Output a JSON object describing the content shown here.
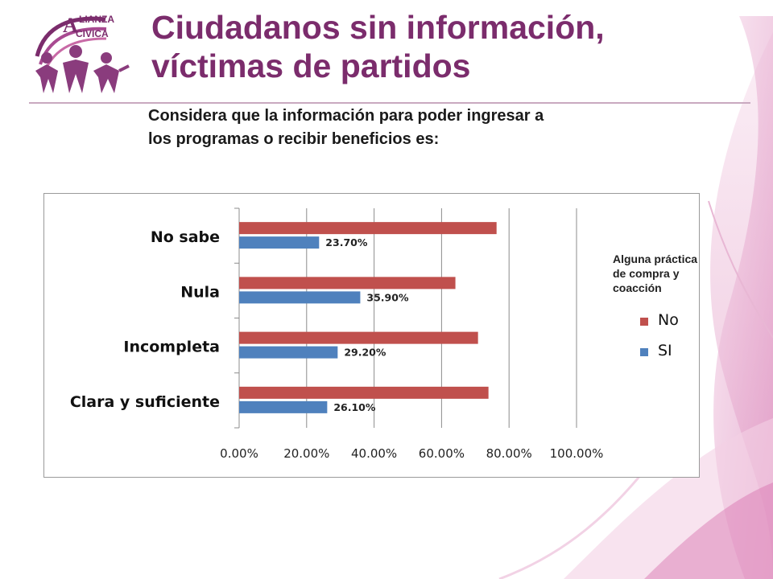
{
  "logo": {
    "text_top": "LIANZA",
    "text_bottom": "CIVICA",
    "letter": "A",
    "name": "alianza-civica-logo"
  },
  "header": {
    "title_line1": "Ciudadanos sin información,",
    "title_line2": "víctimas de partidos"
  },
  "question": {
    "line1": "Considera  que la información para poder ingresar a",
    "line2": "los programas o recibir beneficios es:"
  },
  "colors": {
    "title": "#7b2c6c",
    "no": "#c0504d",
    "si": "#4f81bd",
    "accent": "#c86aa6"
  },
  "legend": {
    "title_line1": "Alguna práctica",
    "title_line2": "de compra y",
    "title_line3": "coacción",
    "items": [
      {
        "label": "No",
        "color": "#c0504d"
      },
      {
        "label": "SI",
        "color": "#4f81bd"
      }
    ]
  },
  "chart_data": {
    "type": "bar",
    "orientation": "horizontal",
    "categories": [
      "No sabe",
      "Nula",
      "Incompleta",
      "Clara y suficiente"
    ],
    "series": [
      {
        "name": "No",
        "values": [
          76.3,
          64.1,
          70.8,
          73.9
        ],
        "color": "#c0504d"
      },
      {
        "name": "SI",
        "values": [
          23.7,
          35.9,
          29.2,
          26.1
        ],
        "color": "#4f81bd",
        "data_labels": [
          "23.70%",
          "35.90%",
          "29.20%",
          "26.10%"
        ]
      }
    ],
    "x_ticks": [
      "0.00%",
      "20.00%",
      "40.00%",
      "60.00%",
      "80.00%",
      "100.00%"
    ],
    "xlim": [
      0,
      100
    ],
    "grid": true,
    "legend_position": "right"
  }
}
